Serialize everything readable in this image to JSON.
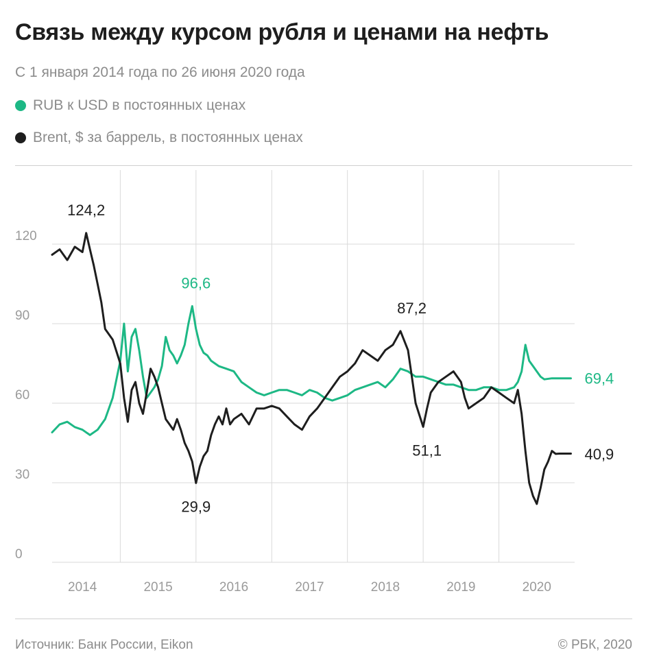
{
  "title": "Связь между курсом рубля и ценами на нефть",
  "subtitle": "С 1 января 2014 года по 26 июня 2020 года",
  "colors": {
    "rub": "#1db885",
    "brent": "#1e1e1e",
    "grid": "#d9d9d9",
    "tick": "#9a9a9a"
  },
  "footer": {
    "source": "Источник: Банк России, Eikon",
    "copyright": "© РБК, 2020"
  },
  "chart_data": {
    "type": "line",
    "x_unit": "year",
    "xlim": [
      2013.6,
      2020.5
    ],
    "ylim": [
      0,
      120
    ],
    "y_ticks": [
      "0",
      "30",
      "60",
      "90",
      "120"
    ],
    "x_ticks": [
      "2014",
      "2015",
      "2016",
      "2017",
      "2018",
      "2019",
      "2020"
    ],
    "grid": true,
    "legend_placement": "top-left",
    "series": [
      {
        "name": "RUB к USD в постоянных ценах",
        "color": "#1db885",
        "x": [
          2013.6,
          2013.7,
          2013.8,
          2013.9,
          2014.0,
          2014.1,
          2014.2,
          2014.3,
          2014.4,
          2014.5,
          2014.55,
          2014.6,
          2014.62,
          2014.65,
          2014.7,
          2014.75,
          2014.8,
          2014.85,
          2014.9,
          2014.95,
          2015.0,
          2015.05,
          2015.1,
          2015.15,
          2015.2,
          2015.25,
          2015.3,
          2015.35,
          2015.4,
          2015.45,
          2015.5,
          2015.55,
          2015.6,
          2015.65,
          2015.7,
          2015.75,
          2015.8,
          2015.9,
          2016.0,
          2016.1,
          2016.2,
          2016.3,
          2016.4,
          2016.5,
          2016.6,
          2016.7,
          2016.8,
          2016.9,
          2017.0,
          2017.1,
          2017.2,
          2017.3,
          2017.4,
          2017.5,
          2017.6,
          2017.7,
          2017.8,
          2017.9,
          2018.0,
          2018.1,
          2018.2,
          2018.3,
          2018.35,
          2018.4,
          2018.5,
          2018.6,
          2018.7,
          2018.8,
          2018.9,
          2019.0,
          2019.1,
          2019.2,
          2019.3,
          2019.4,
          2019.5,
          2019.6,
          2019.7,
          2019.75,
          2019.8,
          2019.85,
          2019.9,
          2019.95,
          2020.0,
          2020.05,
          2020.1,
          2020.2,
          2020.3,
          2020.4,
          2020.45
        ],
        "values": [
          49,
          52,
          53,
          51,
          50,
          48,
          50,
          54,
          62,
          76,
          90,
          72,
          77,
          85,
          88,
          80,
          70,
          62,
          64,
          66,
          69,
          74,
          85,
          80,
          78,
          75,
          78,
          82,
          90,
          96.6,
          88,
          82,
          79,
          78,
          76,
          75,
          74,
          73,
          72,
          68,
          66,
          64,
          63,
          64,
          65,
          65,
          64,
          63,
          65,
          64,
          62,
          61,
          62,
          63,
          65,
          66,
          67,
          68,
          66,
          69,
          73,
          72,
          71,
          70,
          70,
          69,
          68,
          67,
          67,
          66,
          65,
          65,
          66,
          66,
          65,
          65,
          66,
          68,
          72,
          82,
          76,
          74,
          72,
          70,
          69,
          69.4,
          69.4,
          69.4,
          69.4
        ]
      },
      {
        "name": "Brent, $ за баррель, в постоянных ценах",
        "color": "#1e1e1e",
        "x": [
          2013.6,
          2013.7,
          2013.8,
          2013.9,
          2014.0,
          2014.05,
          2014.1,
          2014.15,
          2014.2,
          2014.25,
          2014.3,
          2014.4,
          2014.5,
          2014.55,
          2014.6,
          2014.65,
          2014.7,
          2014.75,
          2014.8,
          2014.85,
          2014.9,
          2014.95,
          2015.0,
          2015.05,
          2015.1,
          2015.15,
          2015.2,
          2015.25,
          2015.3,
          2015.35,
          2015.4,
          2015.45,
          2015.5,
          2015.55,
          2015.6,
          2015.65,
          2015.7,
          2015.75,
          2015.8,
          2015.85,
          2015.9,
          2015.95,
          2016.0,
          2016.1,
          2016.2,
          2016.3,
          2016.4,
          2016.5,
          2016.6,
          2016.7,
          2016.8,
          2016.9,
          2017.0,
          2017.1,
          2017.2,
          2017.3,
          2017.4,
          2017.5,
          2017.6,
          2017.7,
          2017.8,
          2017.9,
          2018.0,
          2018.1,
          2018.2,
          2018.3,
          2018.35,
          2018.4,
          2018.5,
          2018.55,
          2018.6,
          2018.65,
          2018.7,
          2018.8,
          2018.9,
          2019.0,
          2019.05,
          2019.1,
          2019.2,
          2019.3,
          2019.4,
          2019.5,
          2019.6,
          2019.7,
          2019.75,
          2019.8,
          2019.85,
          2019.9,
          2019.95,
          2020.0,
          2020.05,
          2020.1,
          2020.15,
          2020.2,
          2020.25,
          2020.3,
          2020.35,
          2020.4,
          2020.45
        ],
        "values": [
          116,
          118,
          114,
          119,
          117,
          124.2,
          118,
          112,
          105,
          98,
          88,
          84,
          75,
          62,
          53,
          65,
          68,
          60,
          56,
          64,
          73,
          70,
          66,
          60,
          54,
          52,
          50,
          54,
          50,
          45,
          42,
          38,
          29.9,
          36,
          40,
          42,
          48,
          52,
          55,
          52,
          58,
          52,
          54,
          56,
          52,
          58,
          58,
          59,
          58,
          55,
          52,
          50,
          55,
          58,
          62,
          66,
          70,
          72,
          75,
          80,
          78,
          76,
          80,
          82,
          87.2,
          80,
          70,
          60,
          51.1,
          58,
          64,
          66,
          68,
          70,
          72,
          68,
          62,
          58,
          60,
          62,
          66,
          64,
          62,
          60,
          65,
          56,
          42,
          30,
          25,
          22,
          28,
          35,
          38,
          42,
          40.9,
          41,
          41,
          41,
          41
        ]
      }
    ],
    "annotations": [
      {
        "text": "124,2",
        "series": 1,
        "x": 2014.05,
        "y": 124.2,
        "position": "above"
      },
      {
        "text": "96,6",
        "series": 0,
        "x": 2015.5,
        "y": 96.6,
        "position": "above"
      },
      {
        "text": "29,9",
        "series": 1,
        "x": 2015.5,
        "y": 29.9,
        "position": "below"
      },
      {
        "text": "87,2",
        "series": 1,
        "x": 2018.35,
        "y": 87.2,
        "position": "above"
      },
      {
        "text": "51,1",
        "series": 1,
        "x": 2018.55,
        "y": 51.1,
        "position": "below"
      },
      {
        "text": "69,4",
        "series": 0,
        "x": 2020.45,
        "y": 69.4,
        "position": "right"
      },
      {
        "text": "40,9",
        "series": 1,
        "x": 2020.45,
        "y": 40.9,
        "position": "right"
      }
    ]
  }
}
